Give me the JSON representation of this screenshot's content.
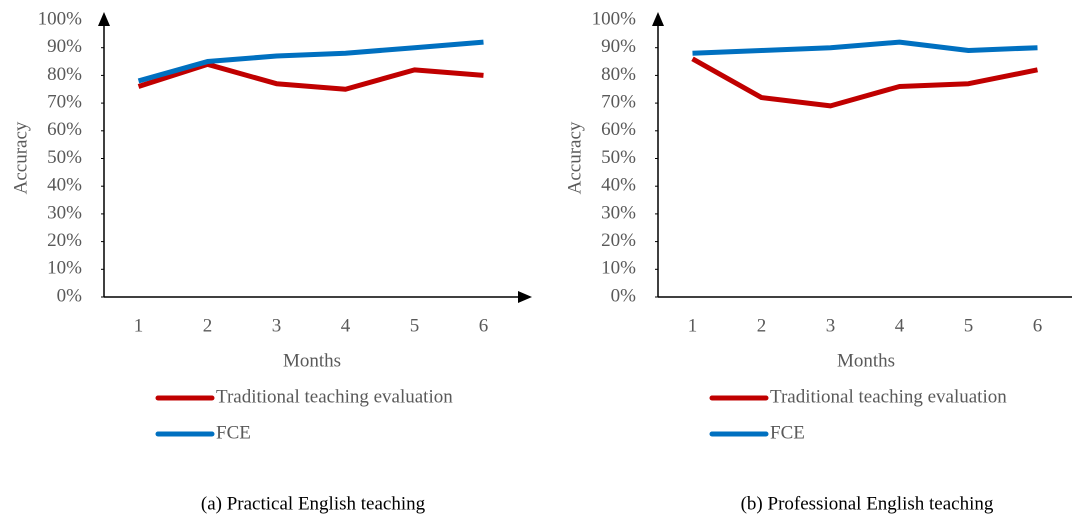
{
  "chart_data": [
    {
      "type": "line",
      "caption": "(a) Practical English teaching",
      "x_label": "Months",
      "y_label": "Accuracy",
      "categories": [
        "1",
        "2",
        "3",
        "4",
        "5",
        "6"
      ],
      "series": [
        {
          "name": "Traditional teaching evaluation",
          "color": "#c00000",
          "values": [
            76,
            84,
            77,
            75,
            82,
            80
          ]
        },
        {
          "name": "FCE",
          "color": "#0070c0",
          "values": [
            78,
            85,
            87,
            88,
            90,
            92
          ]
        }
      ],
      "ylim": [
        0,
        100
      ],
      "yticks": [
        {
          "value": 0,
          "label": "0%"
        },
        {
          "value": 10,
          "label": "10%"
        },
        {
          "value": 20,
          "label": "20%"
        },
        {
          "value": 30,
          "label": "30%"
        },
        {
          "value": 40,
          "label": "40%"
        },
        {
          "value": 50,
          "label": "50%"
        },
        {
          "value": 60,
          "label": "60%"
        },
        {
          "value": 70,
          "label": "70%"
        },
        {
          "value": 80,
          "label": "80%"
        },
        {
          "value": 90,
          "label": "90%"
        },
        {
          "value": 100,
          "label": "100%"
        }
      ],
      "grid": false,
      "legend": "bottom"
    },
    {
      "type": "line",
      "caption": "(b) Professional English teaching",
      "x_label": "Months",
      "y_label": "Accuracy",
      "categories": [
        "1",
        "2",
        "3",
        "4",
        "5",
        "6"
      ],
      "series": [
        {
          "name": "Traditional teaching evaluation",
          "color": "#c00000",
          "values": [
            86,
            72,
            69,
            76,
            77,
            82
          ]
        },
        {
          "name": "FCE",
          "color": "#0070c0",
          "values": [
            88,
            89,
            90,
            92,
            89,
            90
          ]
        }
      ],
      "ylim": [
        0,
        100
      ],
      "yticks": [
        {
          "value": 0,
          "label": "0%"
        },
        {
          "value": 10,
          "label": "10%"
        },
        {
          "value": 20,
          "label": "20%"
        },
        {
          "value": 30,
          "label": "30%"
        },
        {
          "value": 40,
          "label": "40%"
        },
        {
          "value": 50,
          "label": "50%"
        },
        {
          "value": 60,
          "label": "60%"
        },
        {
          "value": 70,
          "label": "70%"
        },
        {
          "value": 80,
          "label": "80%"
        },
        {
          "value": 90,
          "label": "90%"
        },
        {
          "value": 100,
          "label": "100%"
        }
      ],
      "grid": false,
      "legend": "bottom"
    }
  ]
}
